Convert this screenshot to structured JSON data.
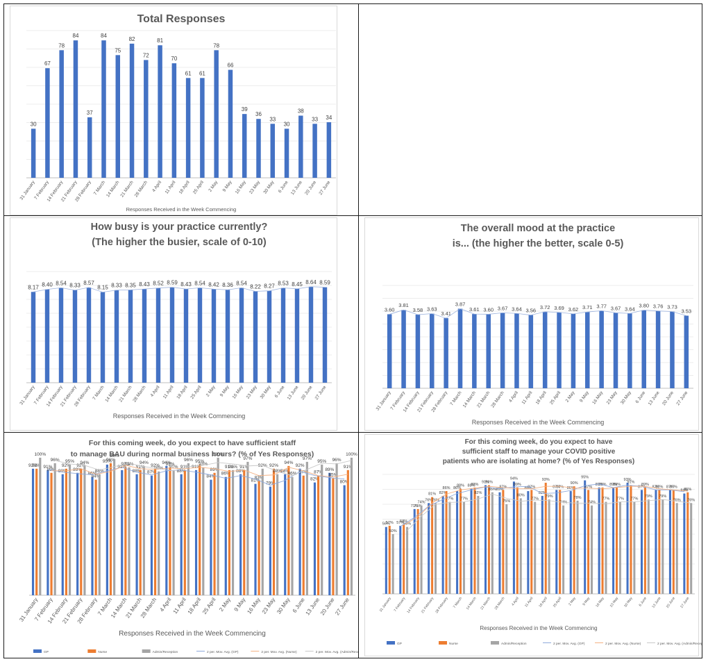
{
  "chart_data": [
    {
      "type": "bar",
      "title": "Total Responses",
      "xlabel": "Responses Received in the Week Commencing",
      "ylabel": "",
      "ylim": [
        0,
        90
      ],
      "categories": [
        "31 January",
        "7 February",
        "14 February",
        "21 February",
        "28 February",
        "7 March",
        "14 March",
        "21 March",
        "28 March",
        "4 April",
        "11 April",
        "18 April",
        "25 April",
        "2 May",
        "9 May",
        "16 May",
        "23 May",
        "30 May",
        "6 June",
        "13 June",
        "20 June",
        "27 June"
      ],
      "values": [
        30,
        67,
        78,
        84,
        37,
        84,
        75,
        82,
        72,
        81,
        70,
        61,
        61,
        78,
        66,
        39,
        36,
        33,
        30,
        38,
        33,
        34
      ],
      "color": "#4472c4"
    },
    {
      "type": "bar",
      "title": "How busy is your practice currently?  (The higher the busier, scale of 0-10)",
      "xlabel": "Responses Received in the Week Commencing",
      "ylabel": "",
      "ylim": [
        0,
        10
      ],
      "categories": [
        "31 January",
        "7 February",
        "14 February",
        "21 February",
        "28 February",
        "7 March",
        "14 March",
        "21 March",
        "28 March",
        "4 April",
        "11 April",
        "18 April",
        "25 April",
        "2 May",
        "9 May",
        "16 May",
        "23 May",
        "30 May",
        "6 June",
        "13 June",
        "20 June",
        "27 June"
      ],
      "values": [
        8.17,
        8.4,
        8.54,
        8.33,
        8.57,
        8.15,
        8.33,
        8.35,
        8.43,
        8.52,
        8.59,
        8.43,
        8.54,
        8.42,
        8.36,
        8.54,
        8.22,
        8.27,
        8.53,
        8.45,
        8.64,
        8.59
      ],
      "value_labels": [
        "8.17",
        "8.40",
        "8.54",
        "8.33",
        "8.57",
        "8.15",
        "8.33",
        "8.35",
        "8.43",
        "8.52",
        "8.59",
        "8.43",
        "8.54",
        "8.42",
        "8.36",
        "8.54",
        "8.22",
        "8.27",
        "8.53",
        "8.45",
        "8.64",
        "8.59"
      ],
      "color": "#4472c4"
    },
    {
      "type": "bar",
      "title": "The overall mood at the practice is... (the higher the better, scale 0-5)",
      "xlabel": "Responses Received in the Week Commencing",
      "ylabel": "",
      "ylim": [
        0,
        5
      ],
      "categories": [
        "31 January",
        "7 February",
        "14 February",
        "21 February",
        "28 February",
        "7 March",
        "14 March",
        "21 March",
        "28 March",
        "4 April",
        "11 April",
        "18 April",
        "25 April",
        "2 May",
        "9 May",
        "16 May",
        "23 May",
        "30 May",
        "6 June",
        "13 June",
        "20 June",
        "27 June"
      ],
      "values": [
        3.6,
        3.81,
        3.58,
        3.63,
        3.41,
        3.87,
        3.61,
        3.6,
        3.67,
        3.64,
        3.56,
        3.72,
        3.69,
        3.62,
        3.71,
        3.77,
        3.67,
        3.64,
        3.8,
        3.76,
        3.73,
        3.53
      ],
      "value_labels": [
        "3.60",
        "3.81",
        "3.58",
        "3.63",
        "3.41",
        "3.87",
        "3.61",
        "3.60",
        "3.67",
        "3.64",
        "3.56",
        "3.72",
        "3.69",
        "3.62",
        "3.71",
        "3.77",
        "3.67",
        "3.64",
        "3.80",
        "3.76",
        "3.73",
        "3.53"
      ],
      "color": "#4472c4"
    },
    {
      "type": "bar",
      "title": "For this coming week, do you expect to have sufficient staff to manage BAU during normal business hours? (% of Yes Responses)",
      "xlabel": "Responses Received in the Week Commencing",
      "ylabel": "",
      "ylim": [
        0,
        100
      ],
      "categories": [
        "31 January",
        "7 February",
        "14 February",
        "21 February",
        "28 February",
        "7 March",
        "14 March",
        "21 March",
        "28 March",
        "4 April",
        "11 April",
        "18 April",
        "25 April",
        "2 May",
        "9 May",
        "16 May",
        "23 May",
        "30 May",
        "6 June",
        "13 June",
        "20 June",
        "27 June"
      ],
      "series": [
        {
          "name": "GP",
          "color": "#4472c4",
          "values": [
            92,
            91,
            88,
            89,
            86,
            95,
            91,
            88,
            87,
            94,
            88,
            91,
            84,
            86,
            88,
            81,
            79,
            88,
            92,
            82,
            89,
            80
          ]
        },
        {
          "name": "Nurse",
          "color": "#ed7d31",
          "values": [
            92,
            89,
            92,
            92,
            84,
            96,
            93,
            91,
            92,
            93,
            91,
            95,
            89,
            91,
            91,
            83,
            92,
            94,
            87,
            87,
            85,
            91
          ]
        },
        {
          "name": "Admin/Reception",
          "color": "#a5a5a5",
          "values": [
            100,
            96,
            95,
            94,
            88,
            99,
            93,
            94,
            90,
            91,
            96,
            93,
            100,
            91,
            97,
            92,
            88,
            86,
            97,
            95,
            96,
            100
          ]
        }
      ],
      "legend": [
        "GP",
        "Nurse",
        "Admin/Reception",
        "2 per. Mov. Avg. (GP)",
        "2 per. Mov. Avg. (Nurse)",
        "2 per. Mov. Avg. (Admin/Reception)"
      ],
      "legend_position": "bottom"
    },
    {
      "type": "bar",
      "title": "For this coming week, do you expect to have sufficient staff to manage your COVID positive patients who are isolating at home? (% of Yes Responses)",
      "xlabel": "Responses Received in the Week Commencing",
      "ylabel": "",
      "ylim": [
        0,
        100
      ],
      "categories": [
        "31 January",
        "7 February",
        "14 February",
        "21 February",
        "28 February",
        "7 March",
        "14 March",
        "21 March",
        "28 March",
        "4 April",
        "11 April",
        "18 April",
        "25 April",
        "2 May",
        "9 May",
        "16 May",
        "23 May",
        "30 May",
        "6 June",
        "13 June",
        "20 June",
        "27 June"
      ],
      "series": [
        {
          "name": "GP",
          "color": "#4472c4",
          "values": [
            56,
            57,
            71,
            76,
            82,
            86,
            88,
            91,
            85,
            94,
            86,
            82,
            87,
            86,
            95,
            89,
            89,
            93,
            87,
            87,
            87,
            84
          ]
        },
        {
          "name": "Nurse",
          "color": "#ed7d31",
          "values": [
            57,
            58,
            71,
            81,
            86,
            88,
            89,
            91,
            87,
            89,
            87,
            93,
            87,
            90,
            87,
            89,
            89,
            91,
            89,
            87,
            87,
            85
          ]
        },
        {
          "name": "Admin/Reception",
          "color": "#a5a5a5",
          "values": [
            50,
            56,
            74,
            76,
            77,
            77,
            82,
            85,
            75,
            80,
            77,
            79,
            74,
            78,
            74,
            77,
            77,
            77,
            79,
            79,
            76,
            76
          ]
        }
      ],
      "legend": [
        "GP",
        "Nurse",
        "Admin/Reception",
        "2 per. Mov. Avg. (GP)",
        "2 per. Mov. Avg. (Nurse)",
        "2 per. Mov. Avg. (Admin/Reception)"
      ],
      "legend_position": "bottom"
    }
  ]
}
